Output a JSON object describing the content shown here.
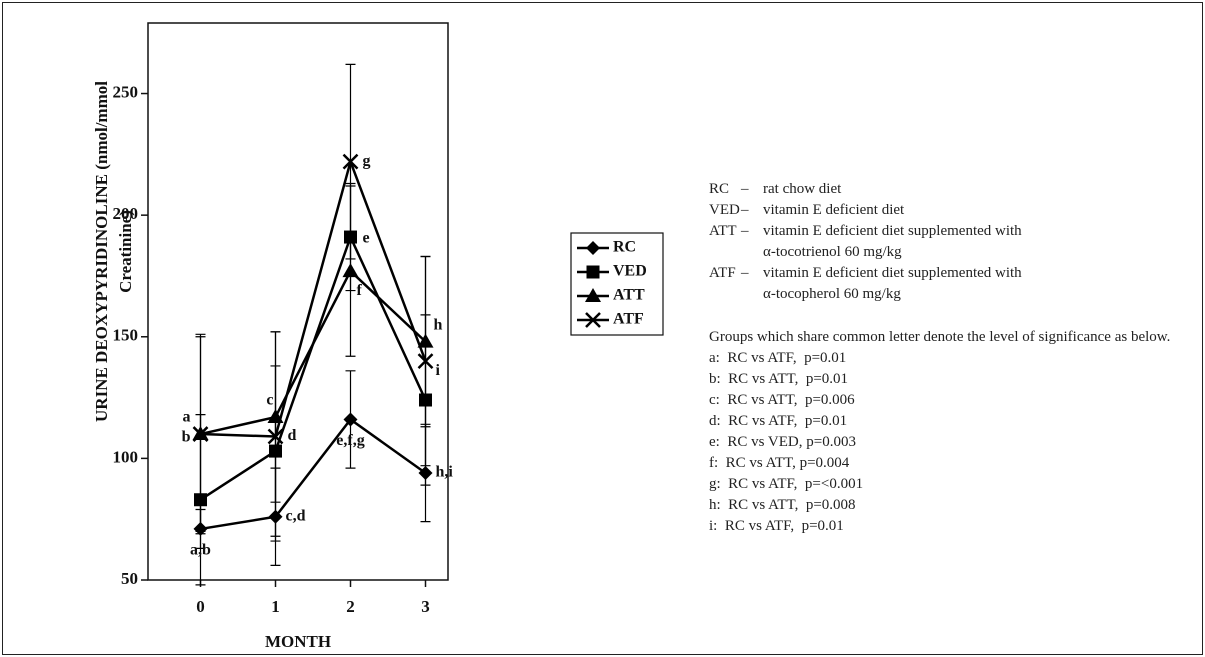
{
  "chart_data": {
    "type": "line",
    "ylabel": [
      "URINE DEOXYPYRIDINOLINE (nmol/mmol",
      "Creatinine)"
    ],
    "xlabel": "MONTH",
    "x": [
      0,
      1,
      2,
      3
    ],
    "xlim": [
      -0.7,
      3.3
    ],
    "xticks": [
      0,
      1,
      2,
      3
    ],
    "ylim": [
      50,
      279
    ],
    "yticks": [
      50,
      100,
      150,
      200,
      250
    ],
    "series": [
      {
        "name": "RC",
        "color": "#000000",
        "marker": "diamond",
        "values": [
          71,
          76,
          116,
          94
        ],
        "errors": [
          8,
          20,
          20,
          20
        ]
      },
      {
        "name": "VED",
        "color": "#000000",
        "marker": "square",
        "values": [
          83,
          103,
          191,
          124
        ],
        "errors": [
          35,
          35,
          22,
          35
        ]
      },
      {
        "name": "ATT",
        "color": "#000000",
        "marker": "triangle",
        "values": [
          110,
          117,
          177,
          148
        ],
        "errors": [
          40,
          35,
          35,
          35
        ]
      },
      {
        "name": "ATF",
        "color": "#000000",
        "marker": "x",
        "values": [
          110,
          109,
          222,
          140
        ],
        "errors": [
          41,
          43,
          40,
          43
        ]
      }
    ],
    "annotations": [
      "a",
      "b",
      "c",
      "d",
      "g",
      "e",
      "f",
      "h",
      "i",
      "a,b",
      "c,d",
      "e,f,g",
      "h,i"
    ]
  },
  "notes": {
    "definitions": [
      {
        "abbr": "RC",
        "dash": "–",
        "lines": [
          "rat chow diet"
        ]
      },
      {
        "abbr": "VED",
        "dash": "–",
        "lines": [
          "vitamin E deficient diet"
        ]
      },
      {
        "abbr": "ATT",
        "dash": "–",
        "lines": [
          "vitamin E deficient diet supplemented with",
          "α-tocotrienol 60 mg/kg"
        ]
      },
      {
        "abbr": "ATF",
        "dash": "–",
        "lines": [
          "vitamin E deficient diet supplemented with",
          "α-tocopherol 60 mg/kg"
        ]
      }
    ],
    "paragraph": "Groups which share common letter denote the level of significance as below.",
    "significance": [
      "a:  RC vs ATF,  p=0.01",
      "b:  RC vs ATT,  p=0.01",
      "c:  RC vs ATT,  p=0.006",
      "d:  RC vs ATF,  p=0.01",
      "e:  RC vs VED, p=0.003",
      "f:  RC vs ATT, p=0.004",
      "g:  RC vs ATF,  p=<0.001",
      "h:  RC vs ATT,  p=0.008",
      "i:  RC vs ATF,  p=0.01"
    ]
  }
}
